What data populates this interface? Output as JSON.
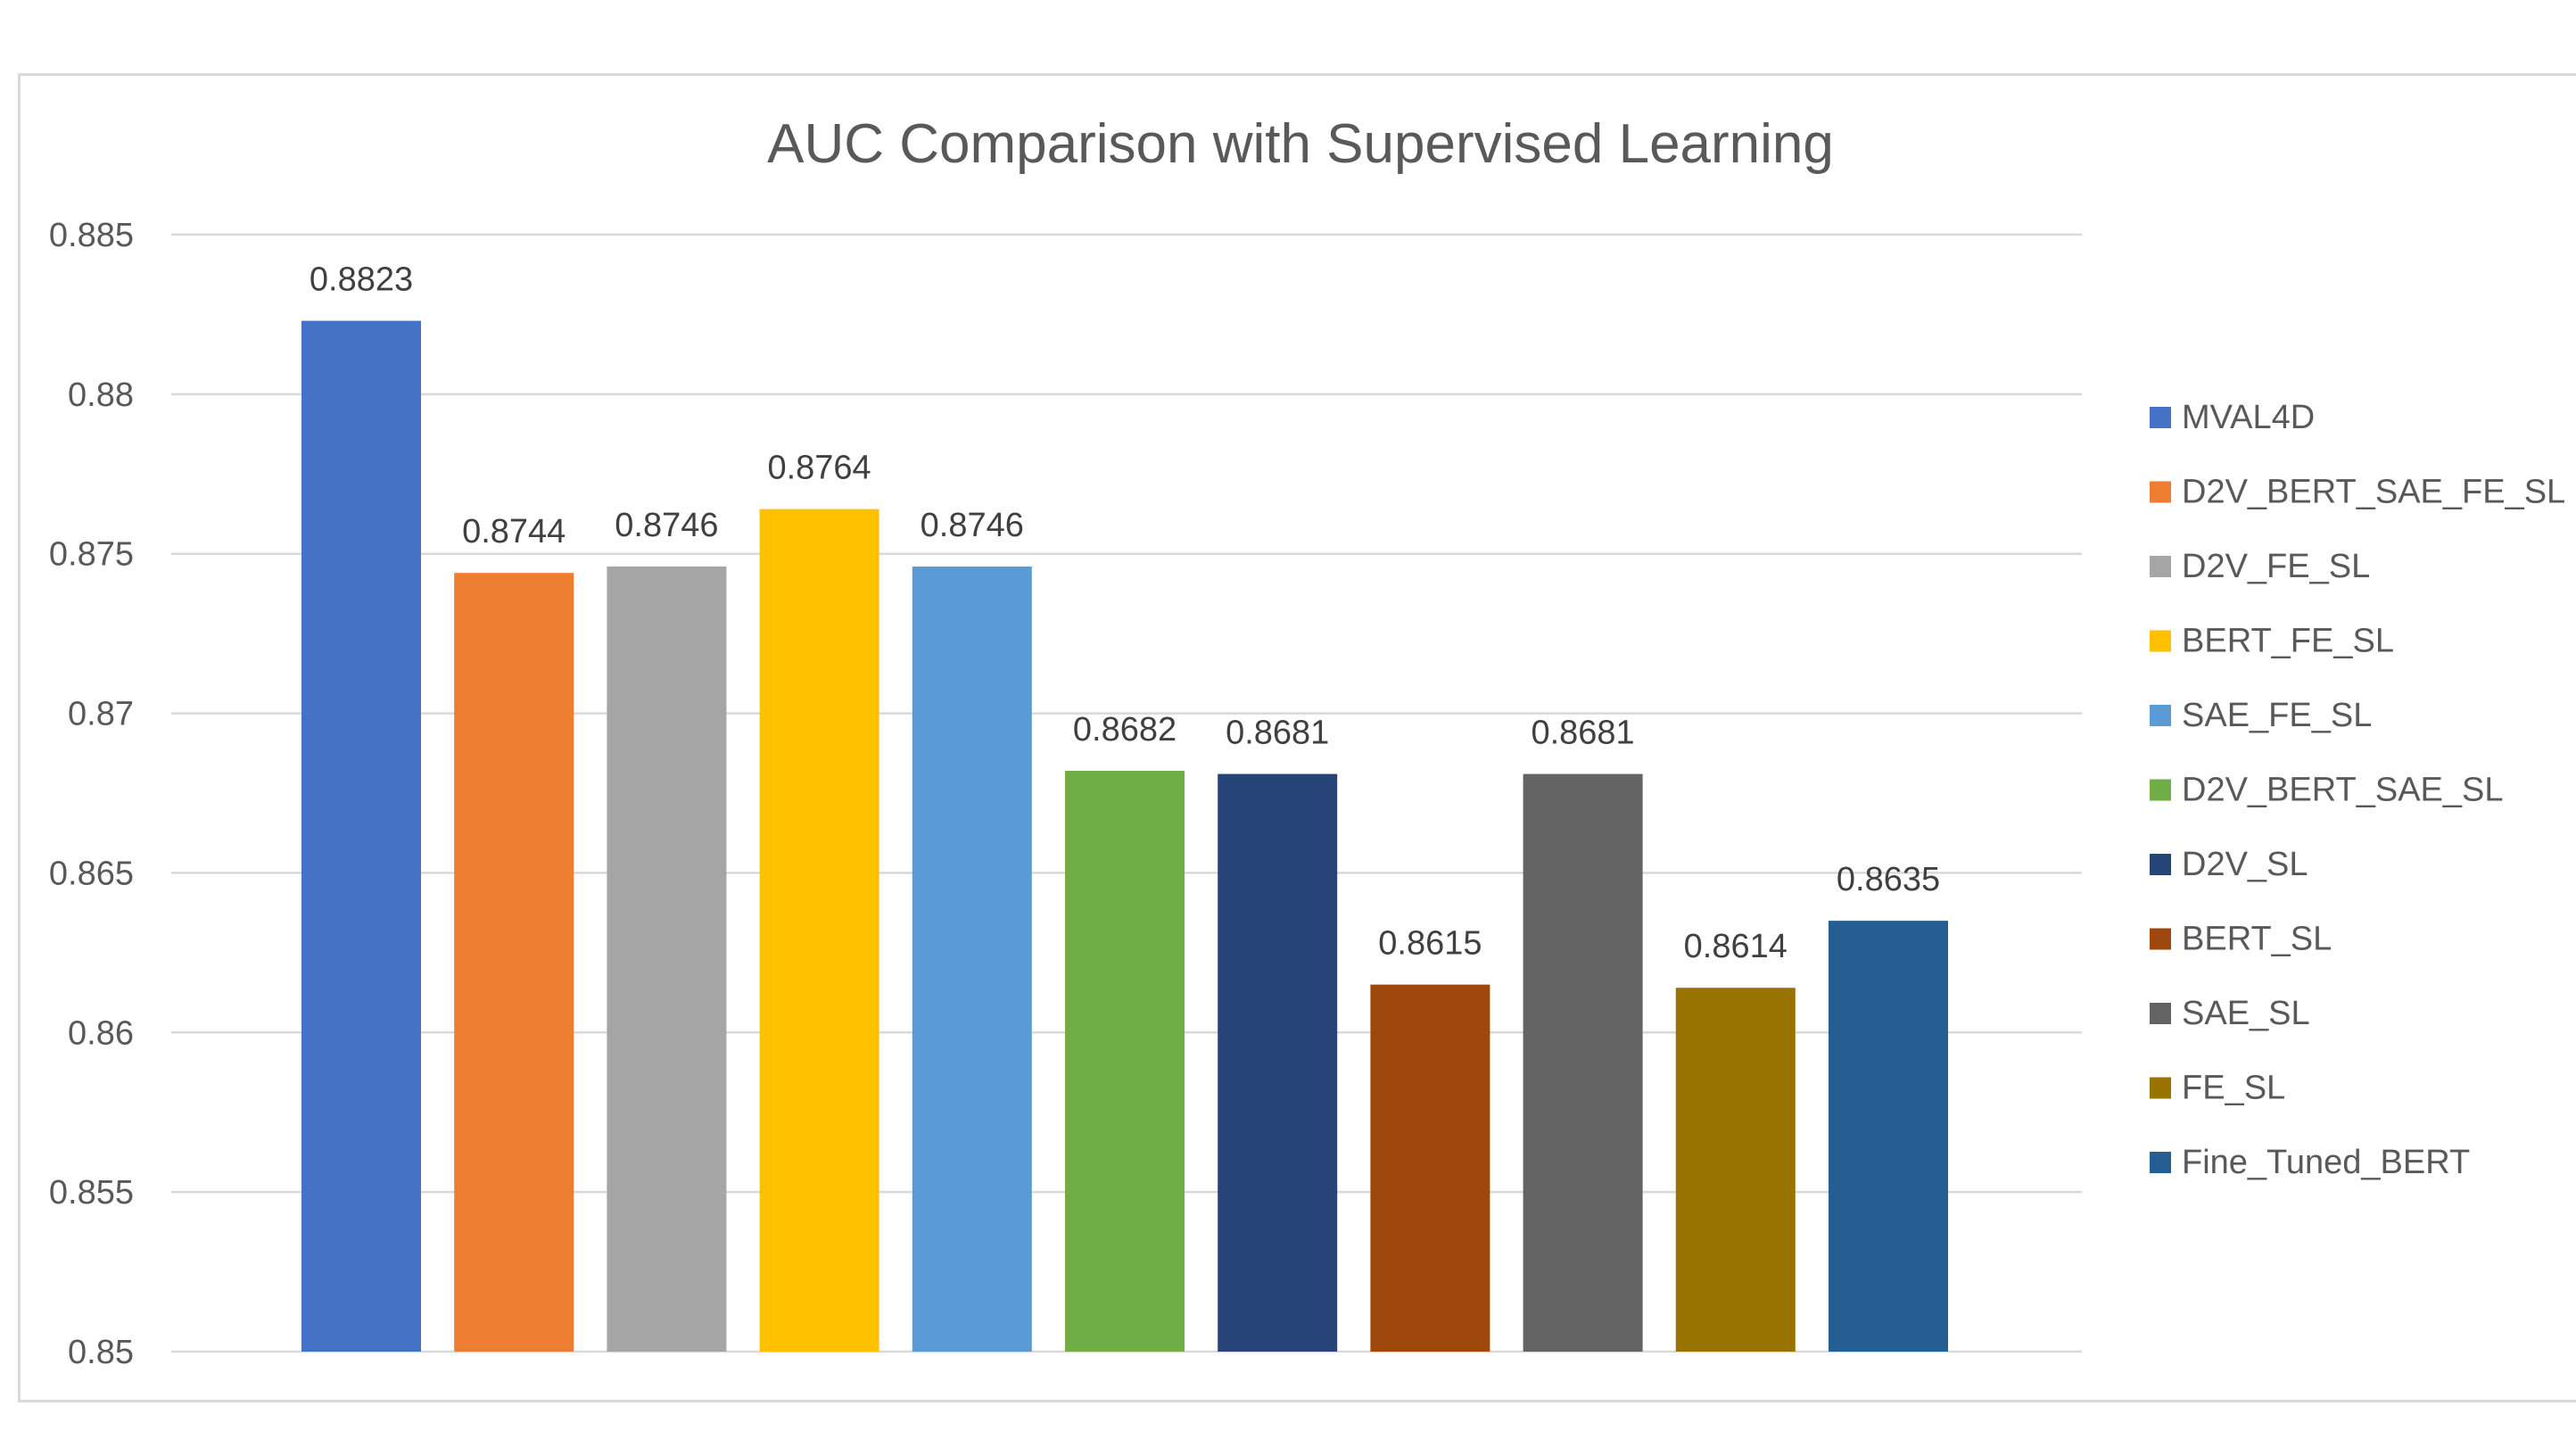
{
  "chart_data": {
    "type": "bar",
    "title": "AUC Comparison with Supervised Learning",
    "xlabel": "",
    "ylabel": "",
    "ylim": [
      0.85,
      0.885
    ],
    "yticks": [
      "0.85",
      "0.855",
      "0.86",
      "0.865",
      "0.87",
      "0.875",
      "0.88",
      "0.885"
    ],
    "grid": true,
    "legend_position": "right",
    "series": [
      {
        "name": "MVAL4D",
        "value": 0.8823,
        "label": "0.8823",
        "color": "#4472C4"
      },
      {
        "name": "D2V_BERT_SAE_FE_SL",
        "value": 0.8744,
        "label": "0.8744",
        "color": "#ED7D31"
      },
      {
        "name": "D2V_FE_SL",
        "value": 0.8746,
        "label": "0.8746",
        "color": "#A5A5A5"
      },
      {
        "name": "BERT_FE_SL",
        "value": 0.8764,
        "label": "0.8764",
        "color": "#FFC000"
      },
      {
        "name": "SAE_FE_SL",
        "value": 0.8746,
        "label": "0.8746",
        "color": "#5B9BD5"
      },
      {
        "name": "D2V_BERT_SAE_SL",
        "value": 0.8682,
        "label": "0.8682",
        "color": "#70AD47"
      },
      {
        "name": "D2V_SL",
        "value": 0.8681,
        "label": "0.8681",
        "color": "#264478"
      },
      {
        "name": "BERT_SL",
        "value": 0.8615,
        "label": "0.8615",
        "color": "#9E480E"
      },
      {
        "name": "SAE_SL",
        "value": 0.8681,
        "label": "0.8681",
        "color": "#636363"
      },
      {
        "name": "FE_SL",
        "value": 0.8614,
        "label": "0.8614",
        "color": "#997300"
      },
      {
        "name": "Fine_Tuned_BERT",
        "value": 0.8635,
        "label": "0.8635",
        "color": "#255E91"
      }
    ]
  }
}
